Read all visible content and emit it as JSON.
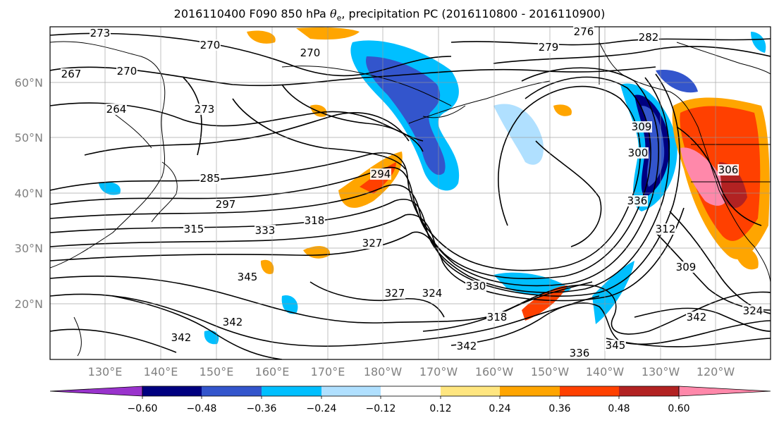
{
  "title": {
    "prefix": "2016110400 F090 850 hPa ",
    "theta": "θ",
    "sub": "e",
    "suffix": ", precipitation PC (2016110800 - 2016110900)"
  },
  "map": {
    "lat_ticks": [
      "60°N",
      "50°N",
      "40°N",
      "30°N",
      "20°N"
    ],
    "lon_ticks": [
      "130°E",
      "140°E",
      "150°E",
      "160°E",
      "170°E",
      "180°W",
      "170°W",
      "160°W",
      "150°W",
      "140°W",
      "130°W",
      "120°W"
    ],
    "contour_labels": [
      "273",
      "270",
      "270",
      "276",
      "279",
      "282",
      "267",
      "270",
      "264",
      "273",
      "285",
      "297",
      "315",
      "318",
      "294",
      "309",
      "327",
      "300",
      "306",
      "312",
      "309",
      "345",
      "327",
      "324",
      "330",
      "333",
      "336",
      "318",
      "342",
      "345",
      "342",
      "324",
      "342",
      "336",
      "342"
    ]
  },
  "colorbar": {
    "labels": [
      "−0.60",
      "−0.48",
      "−0.36",
      "−0.24",
      "−0.12",
      "0.12",
      "0.24",
      "0.36",
      "0.48",
      "0.60"
    ],
    "colors": {
      "under": "#9933cc",
      "bins": [
        "#9933cc",
        "#000080",
        "#3355cc",
        "#00bfff",
        "#b0e0ff",
        "#ffffff",
        "#ffe680",
        "#ffa500",
        "#ff4000",
        "#b22222",
        "#ff88aa"
      ],
      "over": "#ff88aa"
    }
  }
}
